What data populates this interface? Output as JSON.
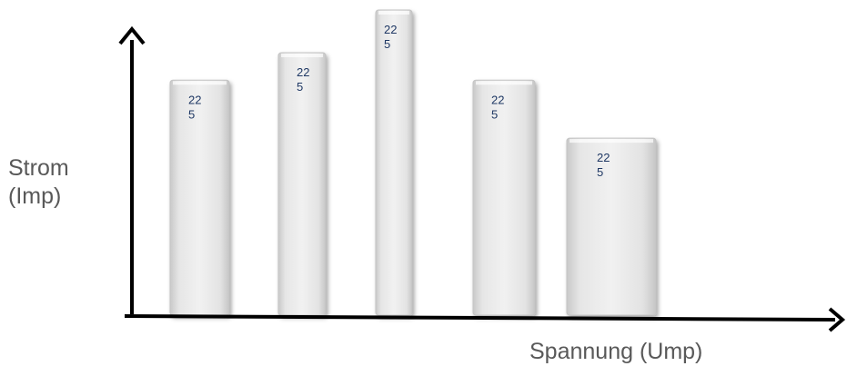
{
  "axes": {
    "y_label_line1": "Strom",
    "y_label_line2": "(Imp)",
    "x_label": "Spannung (Ump)"
  },
  "bars": [
    {
      "label_line1": "22",
      "label_line2": "5",
      "relative_height": 0.77
    },
    {
      "label_line1": "22",
      "label_line2": "5",
      "relative_height": 0.86
    },
    {
      "label_line1": "22",
      "label_line2": "5",
      "relative_height": 1.0
    },
    {
      "label_line1": "22",
      "label_line2": "5",
      "relative_height": 0.77
    },
    {
      "label_line1": "22",
      "label_line2": "5",
      "relative_height": 0.58
    }
  ],
  "colors": {
    "axis": "#000000",
    "bar_fill": "#e2e2e2",
    "bar_edge": "#c4c4c4",
    "bar_label": "#1f3864",
    "axis_title": "#595959"
  }
}
